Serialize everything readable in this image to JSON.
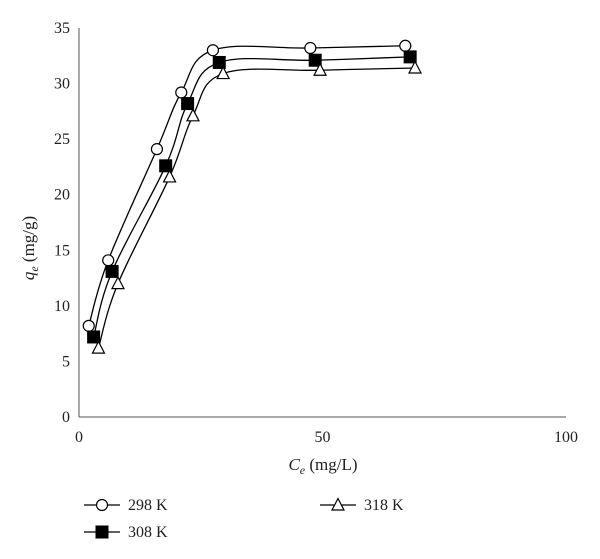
{
  "chart_data": {
    "type": "line",
    "xlabel": "C_e (mg/L)",
    "xlabel_parts": {
      "sym": "C",
      "sub": "e",
      "unit": " (mg/L)"
    },
    "ylabel": "q_e (mg/g)",
    "ylabel_parts": {
      "sym": "q",
      "sub": "e",
      "unit": " (mg/g)"
    },
    "xlim": [
      0,
      100
    ],
    "ylim": [
      0,
      35
    ],
    "xticks": [
      0,
      50,
      100
    ],
    "yticks": [
      0,
      5,
      10,
      15,
      20,
      25,
      30,
      35
    ],
    "grid": false,
    "legend_position": "bottom",
    "series": [
      {
        "name": "298 K",
        "marker": "circle-open",
        "color": "#000000",
        "x": [
          2,
          6,
          16,
          21,
          27.5,
          47.5,
          67
        ],
        "y": [
          8.2,
          14.1,
          24.1,
          29.2,
          33.0,
          33.2,
          33.4
        ]
      },
      {
        "name": "308 K",
        "marker": "square-filled",
        "color": "#000000",
        "x": [
          3,
          6.8,
          17.8,
          22.3,
          28.8,
          48.5,
          68
        ],
        "y": [
          7.2,
          13.1,
          22.6,
          28.2,
          31.9,
          32.1,
          32.4
        ]
      },
      {
        "name": "318 K",
        "marker": "triangle-open",
        "color": "#000000",
        "x": [
          4,
          8,
          18.6,
          23.4,
          29.6,
          49.5,
          69
        ],
        "y": [
          6.2,
          12.0,
          21.6,
          27.1,
          30.9,
          31.2,
          31.4
        ]
      }
    ]
  }
}
